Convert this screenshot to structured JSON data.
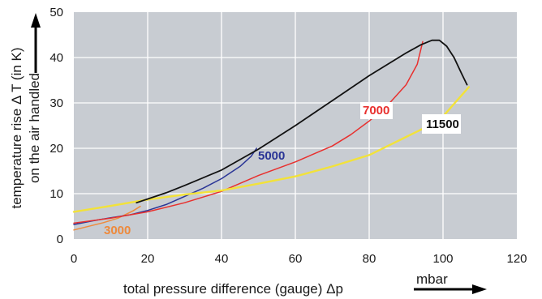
{
  "chart_data": {
    "type": "line",
    "xlabel": "total pressure difference (gauge) Δp",
    "xunit": "mbar",
    "ylabel_line1": "temperature rise Δ T   (in K)",
    "ylabel_line2": "on the air handled",
    "xlim": [
      0,
      120
    ],
    "ylim": [
      0,
      50
    ],
    "xticks": [
      0,
      20,
      40,
      60,
      80,
      100,
      120
    ],
    "yticks": [
      0,
      10,
      20,
      30,
      40,
      50
    ],
    "grid": true,
    "background": "#c8ccd2",
    "series": [
      {
        "name": "3000",
        "color": "#ee8a3c",
        "label": "3000",
        "label_bg": false,
        "points": [
          [
            0,
            2
          ],
          [
            4,
            2.8
          ],
          [
            8,
            3.6
          ],
          [
            12,
            4.6
          ],
          [
            16,
            6.2
          ],
          [
            18,
            7.2
          ]
        ]
      },
      {
        "name": "5000",
        "color": "#2a3596",
        "label": "5000",
        "label_bg": false,
        "points": [
          [
            0,
            3.2
          ],
          [
            5,
            4
          ],
          [
            10,
            4.7
          ],
          [
            15,
            5.3
          ],
          [
            20,
            6.3
          ],
          [
            25,
            7.6
          ],
          [
            30,
            9.4
          ],
          [
            35,
            11.2
          ],
          [
            40,
            13.3
          ],
          [
            45,
            16
          ],
          [
            48,
            18.2
          ],
          [
            49.5,
            20
          ]
        ]
      },
      {
        "name": "7000",
        "color": "#e8302e",
        "label": "7000",
        "label_bg": true,
        "points": [
          [
            0,
            3.5
          ],
          [
            10,
            4.6
          ],
          [
            20,
            6
          ],
          [
            30,
            8
          ],
          [
            40,
            10.5
          ],
          [
            50,
            14
          ],
          [
            60,
            17
          ],
          [
            70,
            20.5
          ],
          [
            75,
            23
          ],
          [
            80,
            26
          ],
          [
            85,
            29.5
          ],
          [
            90,
            34
          ],
          [
            93,
            38.5
          ],
          [
            94.5,
            43.5
          ]
        ]
      },
      {
        "name": "11500",
        "color": "#f2e23a",
        "label": "11500",
        "label_bg": true,
        "points": [
          [
            0,
            6
          ],
          [
            10,
            7.3
          ],
          [
            20,
            8.7
          ],
          [
            30,
            9.8
          ],
          [
            40,
            10.7
          ],
          [
            50,
            12.2
          ],
          [
            60,
            13.8
          ],
          [
            70,
            16
          ],
          [
            80,
            18.5
          ],
          [
            85,
            20.5
          ],
          [
            90,
            22.5
          ],
          [
            95,
            24.5
          ],
          [
            100,
            27
          ],
          [
            103,
            29.8
          ],
          [
            107,
            33.5
          ]
        ]
      },
      {
        "name": "black",
        "color": "#111111",
        "label": "",
        "label_bg": false,
        "points": [
          [
            17,
            8
          ],
          [
            25,
            10.2
          ],
          [
            30,
            11.8
          ],
          [
            40,
            15.2
          ],
          [
            50,
            19.8
          ],
          [
            60,
            25
          ],
          [
            70,
            30.5
          ],
          [
            80,
            36
          ],
          [
            90,
            41
          ],
          [
            94,
            42.8
          ],
          [
            97,
            43.8
          ],
          [
            99,
            43.8
          ],
          [
            101,
            42.5
          ],
          [
            103,
            40
          ],
          [
            105,
            36.5
          ],
          [
            106.5,
            34
          ]
        ]
      }
    ]
  }
}
